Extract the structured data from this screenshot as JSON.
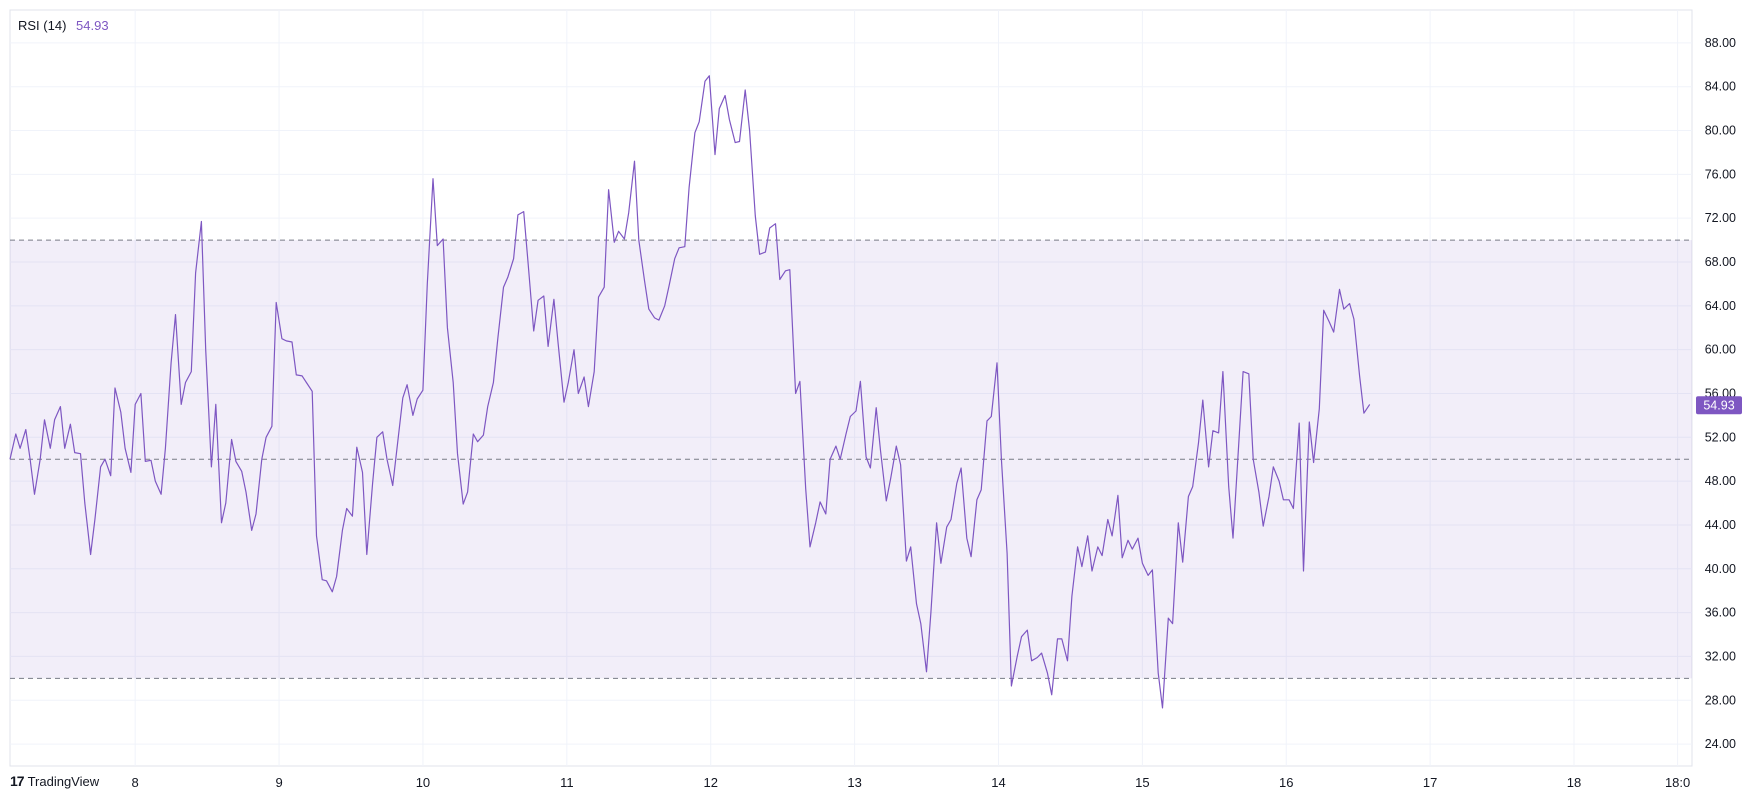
{
  "indicator": {
    "name": "RSI (14)",
    "value": "54.93"
  },
  "brand": {
    "logo_text": "17",
    "name": "TradingView"
  },
  "colors": {
    "line": "#7e57c2",
    "band_fill": "#7e57c2",
    "grid": "#f0f3fa",
    "axis_text": "#131722",
    "last_value_bg": "#7e57c2"
  },
  "chart_data": {
    "type": "line",
    "title": "RSI (14)",
    "ylim": [
      22,
      91
    ],
    "xlim": [
      7.13,
      18.82
    ],
    "y_ticks": [
      "24.00",
      "28.00",
      "32.00",
      "36.00",
      "40.00",
      "44.00",
      "48.00",
      "52.00",
      "56.00",
      "60.00",
      "64.00",
      "68.00",
      "72.00",
      "76.00",
      "80.00",
      "84.00",
      "88.00"
    ],
    "y_tick_values": [
      24,
      28,
      32,
      36,
      40,
      44,
      48,
      52,
      56,
      60,
      64,
      68,
      72,
      76,
      80,
      84,
      88
    ],
    "x_ticks": [
      {
        "label": "8",
        "value": 8
      },
      {
        "label": "9",
        "value": 9
      },
      {
        "label": "10",
        "value": 10
      },
      {
        "label": "11",
        "value": 11
      },
      {
        "label": "12",
        "value": 12
      },
      {
        "label": "13",
        "value": 13
      },
      {
        "label": "14",
        "value": 14
      },
      {
        "label": "15",
        "value": 15
      },
      {
        "label": "16",
        "value": 16
      },
      {
        "label": "17",
        "value": 17
      },
      {
        "label": "18",
        "value": 18
      },
      {
        "label": "18:0",
        "value": 18.72
      }
    ],
    "bands": {
      "upper": 70,
      "middle": 50,
      "lower": 30
    },
    "last_value": 54.93,
    "last_value_label": "54.93",
    "series": [
      {
        "points": [
          [
            7.13,
            50
          ],
          [
            7.17,
            52.3
          ],
          [
            7.2,
            51
          ],
          [
            7.24,
            52.7
          ],
          [
            7.27,
            50
          ],
          [
            7.3,
            46.8
          ],
          [
            7.34,
            50
          ],
          [
            7.37,
            53.6
          ],
          [
            7.41,
            51
          ],
          [
            7.44,
            53.6
          ],
          [
            7.48,
            54.8
          ],
          [
            7.51,
            51
          ],
          [
            7.55,
            53.2
          ],
          [
            7.58,
            50.6
          ],
          [
            7.62,
            50.5
          ],
          [
            7.65,
            46
          ],
          [
            7.69,
            41.3
          ],
          [
            7.72,
            44.5
          ],
          [
            7.76,
            49.3
          ],
          [
            7.79,
            50
          ],
          [
            7.83,
            48.5
          ],
          [
            7.86,
            56.5
          ],
          [
            7.9,
            54.3
          ],
          [
            7.93,
            51
          ],
          [
            7.97,
            48.8
          ],
          [
            8.0,
            55
          ],
          [
            8.04,
            56
          ],
          [
            8.07,
            49.8
          ],
          [
            8.11,
            49.9
          ],
          [
            8.14,
            48
          ],
          [
            8.18,
            46.8
          ],
          [
            8.21,
            51
          ],
          [
            8.25,
            58.8
          ],
          [
            8.28,
            63.2
          ],
          [
            8.32,
            55
          ],
          [
            8.35,
            57
          ],
          [
            8.39,
            58
          ],
          [
            8.42,
            67
          ],
          [
            8.46,
            71.7
          ],
          [
            8.49,
            60
          ],
          [
            8.53,
            49.3
          ],
          [
            8.56,
            55
          ],
          [
            8.6,
            44.2
          ],
          [
            8.63,
            46
          ],
          [
            8.67,
            51.8
          ],
          [
            8.7,
            49.8
          ],
          [
            8.74,
            48.9
          ],
          [
            8.77,
            47
          ],
          [
            8.81,
            43.5
          ],
          [
            8.84,
            45
          ],
          [
            8.88,
            50
          ],
          [
            8.91,
            52
          ],
          [
            8.95,
            53
          ],
          [
            8.98,
            64.3
          ],
          [
            9.02,
            61
          ],
          [
            9.05,
            60.8
          ],
          [
            9.09,
            60.7
          ],
          [
            9.12,
            57.7
          ],
          [
            9.16,
            57.6
          ],
          [
            9.19,
            57
          ],
          [
            9.23,
            56.2
          ],
          [
            9.26,
            43
          ],
          [
            9.3,
            39
          ],
          [
            9.33,
            38.9
          ],
          [
            9.37,
            37.9
          ],
          [
            9.4,
            39.3
          ],
          [
            9.44,
            43.5
          ],
          [
            9.47,
            45.5
          ],
          [
            9.51,
            44.8
          ],
          [
            9.54,
            51.1
          ],
          [
            9.58,
            48.8
          ],
          [
            9.61,
            41.3
          ],
          [
            9.65,
            47.8
          ],
          [
            9.68,
            52
          ],
          [
            9.72,
            52.5
          ],
          [
            9.75,
            50
          ],
          [
            9.79,
            47.6
          ],
          [
            9.82,
            51
          ],
          [
            9.86,
            55.6
          ],
          [
            9.89,
            56.8
          ],
          [
            9.93,
            54
          ],
          [
            9.96,
            55.5
          ],
          [
            10.0,
            56.3
          ],
          [
            10.03,
            66
          ],
          [
            10.07,
            75.6
          ],
          [
            10.1,
            69.5
          ],
          [
            10.14,
            70.1
          ],
          [
            10.17,
            62
          ],
          [
            10.21,
            57
          ],
          [
            10.24,
            50.5
          ],
          [
            10.28,
            45.9
          ],
          [
            10.31,
            47
          ],
          [
            10.35,
            52.3
          ],
          [
            10.38,
            51.6
          ],
          [
            10.42,
            52.2
          ],
          [
            10.45,
            54.8
          ],
          [
            10.49,
            57
          ],
          [
            10.52,
            61
          ],
          [
            10.56,
            65.7
          ],
          [
            10.59,
            66.6
          ],
          [
            10.63,
            68.3
          ],
          [
            10.66,
            72.3
          ],
          [
            10.7,
            72.6
          ],
          [
            10.73,
            68
          ],
          [
            10.77,
            61.7
          ],
          [
            10.8,
            64.5
          ],
          [
            10.84,
            64.9
          ],
          [
            10.87,
            60.3
          ],
          [
            10.91,
            64.6
          ],
          [
            10.94,
            60.5
          ],
          [
            10.98,
            55.2
          ],
          [
            11.01,
            57
          ],
          [
            11.05,
            60
          ],
          [
            11.08,
            56
          ],
          [
            11.12,
            57.5
          ],
          [
            11.15,
            54.8
          ],
          [
            11.19,
            58
          ],
          [
            11.22,
            64.8
          ],
          [
            11.26,
            65.7
          ],
          [
            11.29,
            74.6
          ],
          [
            11.33,
            69.8
          ],
          [
            11.36,
            70.8
          ],
          [
            11.4,
            70.1
          ],
          [
            11.43,
            72.5
          ],
          [
            11.47,
            77.2
          ],
          [
            11.5,
            70
          ],
          [
            11.54,
            66.3
          ],
          [
            11.57,
            63.7
          ],
          [
            11.61,
            62.9
          ],
          [
            11.64,
            62.7
          ],
          [
            11.68,
            64
          ],
          [
            11.71,
            65.8
          ],
          [
            11.75,
            68.3
          ],
          [
            11.78,
            69.3
          ],
          [
            11.82,
            69.4
          ],
          [
            11.85,
            74.8
          ],
          [
            11.89,
            79.8
          ],
          [
            11.92,
            80.8
          ],
          [
            11.96,
            84.5
          ],
          [
            11.99,
            85
          ],
          [
            12.03,
            77.8
          ],
          [
            12.06,
            82
          ],
          [
            12.1,
            83.2
          ],
          [
            12.13,
            81
          ],
          [
            12.17,
            78.9
          ],
          [
            12.2,
            79
          ],
          [
            12.24,
            83.7
          ],
          [
            12.27,
            80
          ],
          [
            12.31,
            72.2
          ],
          [
            12.34,
            68.7
          ],
          [
            12.38,
            68.9
          ],
          [
            12.41,
            71.1
          ],
          [
            12.45,
            71.5
          ],
          [
            12.48,
            66.4
          ],
          [
            12.52,
            67.2
          ],
          [
            12.55,
            67.3
          ],
          [
            12.59,
            56
          ],
          [
            12.62,
            57.1
          ],
          [
            12.66,
            47.3
          ],
          [
            12.69,
            42
          ],
          [
            12.73,
            44.2
          ],
          [
            12.76,
            46.1
          ],
          [
            12.8,
            45
          ],
          [
            12.83,
            50
          ],
          [
            12.87,
            51.2
          ],
          [
            12.9,
            50
          ],
          [
            12.94,
            52.3
          ],
          [
            12.97,
            53.9
          ],
          [
            13.01,
            54.4
          ],
          [
            13.04,
            57.1
          ],
          [
            13.08,
            50.2
          ],
          [
            13.11,
            49.2
          ],
          [
            13.15,
            54.7
          ],
          [
            13.18,
            50.8
          ],
          [
            13.22,
            46.2
          ],
          [
            13.25,
            48.2
          ],
          [
            13.29,
            51.2
          ],
          [
            13.32,
            49.5
          ],
          [
            13.36,
            40.7
          ],
          [
            13.39,
            42
          ],
          [
            13.43,
            36.8
          ],
          [
            13.46,
            35
          ],
          [
            13.5,
            30.6
          ],
          [
            13.53,
            36
          ],
          [
            13.57,
            44.2
          ],
          [
            13.6,
            40.5
          ],
          [
            13.64,
            43.8
          ],
          [
            13.67,
            44.5
          ],
          [
            13.71,
            47.8
          ],
          [
            13.74,
            49.2
          ],
          [
            13.78,
            42.8
          ],
          [
            13.81,
            41.1
          ],
          [
            13.85,
            46.3
          ],
          [
            13.88,
            47.2
          ],
          [
            13.92,
            53.5
          ],
          [
            13.95,
            53.9
          ],
          [
            13.99,
            58.8
          ],
          [
            14.02,
            50
          ],
          [
            14.06,
            41.4
          ],
          [
            14.09,
            29.3
          ],
          [
            14.13,
            32
          ],
          [
            14.16,
            33.8
          ],
          [
            14.2,
            34.4
          ],
          [
            14.23,
            31.6
          ],
          [
            14.27,
            31.9
          ],
          [
            14.3,
            32.3
          ],
          [
            14.34,
            30.5
          ],
          [
            14.37,
            28.5
          ],
          [
            14.41,
            33.6
          ],
          [
            14.44,
            33.6
          ],
          [
            14.48,
            31.6
          ],
          [
            14.51,
            37.5
          ],
          [
            14.55,
            42
          ],
          [
            14.58,
            40.2
          ],
          [
            14.62,
            43
          ],
          [
            14.65,
            39.8
          ],
          [
            14.69,
            42
          ],
          [
            14.72,
            41.2
          ],
          [
            14.76,
            44.5
          ],
          [
            14.79,
            43
          ],
          [
            14.83,
            46.7
          ],
          [
            14.86,
            41
          ],
          [
            14.9,
            42.6
          ],
          [
            14.93,
            41.8
          ],
          [
            14.97,
            42.8
          ],
          [
            15.0,
            40.5
          ],
          [
            15.04,
            39.4
          ],
          [
            15.07,
            39.9
          ],
          [
            15.11,
            30.5
          ],
          [
            15.14,
            27.3
          ],
          [
            15.18,
            35.5
          ],
          [
            15.21,
            35
          ],
          [
            15.25,
            44.2
          ],
          [
            15.28,
            40.6
          ],
          [
            15.32,
            46.6
          ],
          [
            15.35,
            47.5
          ],
          [
            15.39,
            51.5
          ],
          [
            15.42,
            55.4
          ],
          [
            15.46,
            49.3
          ],
          [
            15.49,
            52.6
          ],
          [
            15.53,
            52.4
          ],
          [
            15.56,
            58
          ],
          [
            15.6,
            47.5
          ],
          [
            15.63,
            42.8
          ],
          [
            15.67,
            51.5
          ],
          [
            15.7,
            58
          ],
          [
            15.74,
            57.8
          ],
          [
            15.77,
            50
          ],
          [
            15.81,
            47
          ],
          [
            15.84,
            43.9
          ],
          [
            15.88,
            46.6
          ],
          [
            15.91,
            49.3
          ],
          [
            15.95,
            48
          ],
          [
            15.98,
            46.3
          ],
          [
            16.02,
            46.3
          ],
          [
            16.05,
            45.5
          ],
          [
            16.09,
            53.3
          ],
          [
            16.12,
            39.8
          ],
          [
            16.16,
            53.4
          ],
          [
            16.19,
            49.7
          ],
          [
            16.23,
            54.6
          ],
          [
            16.26,
            63.6
          ],
          [
            16.3,
            62.5
          ],
          [
            16.33,
            61.6
          ],
          [
            16.37,
            65.5
          ],
          [
            16.4,
            63.7
          ],
          [
            16.44,
            64.2
          ],
          [
            16.47,
            62.8
          ],
          [
            16.51,
            57.6
          ],
          [
            16.54,
            54.2
          ],
          [
            16.58,
            55
          ]
        ]
      }
    ]
  }
}
